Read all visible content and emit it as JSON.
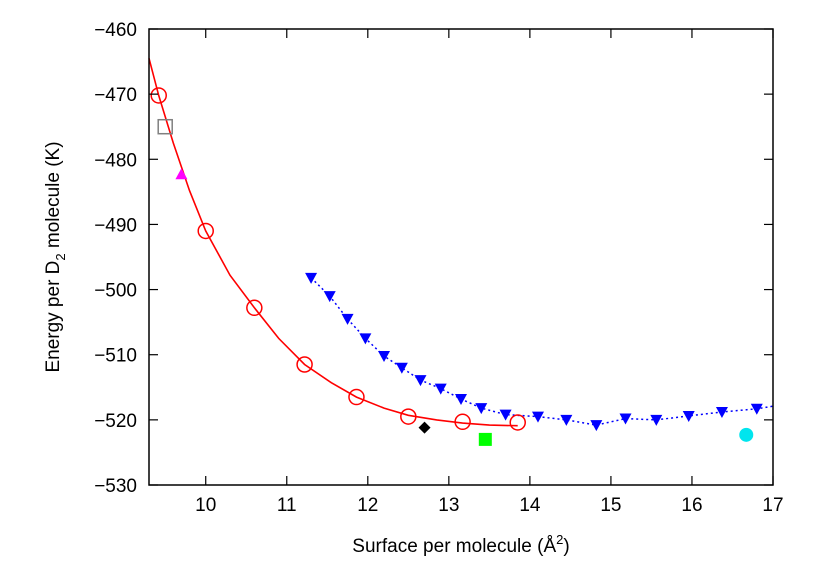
{
  "chart_data": {
    "type": "scatter",
    "title": "",
    "xlabel": {
      "prefix": "Surface per molecule (Å",
      "sup": "2",
      "suffix": ")"
    },
    "ylabel": {
      "prefix": "Energy per D",
      "sub": "2",
      "suffix": " molecule (K)"
    },
    "xlim": [
      9.3,
      17
    ],
    "ylim": [
      -530,
      -460
    ],
    "xticks": [
      10,
      11,
      12,
      13,
      14,
      15,
      16,
      17
    ],
    "yticks": [
      -530,
      -520,
      -510,
      -500,
      -490,
      -480,
      -470,
      -460
    ],
    "xtick_labels": [
      "10",
      "11",
      "12",
      "13",
      "14",
      "15",
      "16",
      "17"
    ],
    "ytick_labels": [
      "−530",
      "−520",
      "−510",
      "−500",
      "−490",
      "−480",
      "−470",
      "−460"
    ],
    "grid": false,
    "legend": "none",
    "series": [
      {
        "marker": "open-circle",
        "color": "#ff0000",
        "points": [
          {
            "x": 9.42,
            "y": -470.2
          },
          {
            "x": 10.0,
            "y": -491.0
          },
          {
            "x": 10.6,
            "y": -502.8
          },
          {
            "x": 11.22,
            "y": -511.5
          },
          {
            "x": 11.86,
            "y": -516.5
          },
          {
            "x": 12.5,
            "y": -519.5
          },
          {
            "x": 13.17,
            "y": -520.3
          },
          {
            "x": 13.85,
            "y": -520.4
          }
        ]
      },
      {
        "marker": "filled-triangle-down",
        "color": "#0000ff",
        "points": [
          {
            "x": 11.3,
            "y": -498.2
          },
          {
            "x": 11.53,
            "y": -501.0
          },
          {
            "x": 11.75,
            "y": -504.5
          },
          {
            "x": 11.97,
            "y": -507.5
          },
          {
            "x": 12.2,
            "y": -510.2
          },
          {
            "x": 12.42,
            "y": -512.0
          },
          {
            "x": 12.65,
            "y": -513.9
          },
          {
            "x": 12.9,
            "y": -515.2
          },
          {
            "x": 13.15,
            "y": -516.8
          },
          {
            "x": 13.4,
            "y": -518.2
          },
          {
            "x": 13.7,
            "y": -519.2
          },
          {
            "x": 14.1,
            "y": -519.5
          },
          {
            "x": 14.45,
            "y": -520.0
          },
          {
            "x": 14.82,
            "y": -520.8
          },
          {
            "x": 15.18,
            "y": -519.8
          },
          {
            "x": 15.56,
            "y": -520.0
          },
          {
            "x": 15.96,
            "y": -519.4
          },
          {
            "x": 16.37,
            "y": -518.8
          },
          {
            "x": 16.8,
            "y": -518.3
          }
        ]
      },
      {
        "marker": "open-square",
        "color": "#808080",
        "points": [
          {
            "x": 9.5,
            "y": -475.0
          }
        ]
      },
      {
        "marker": "filled-triangle-up",
        "color": "#ff00ff",
        "points": [
          {
            "x": 9.7,
            "y": -482.3
          }
        ]
      },
      {
        "marker": "filled-diamond",
        "color": "#000000",
        "points": [
          {
            "x": 12.7,
            "y": -521.2
          }
        ]
      },
      {
        "marker": "filled-square",
        "color": "#00ff00",
        "points": [
          {
            "x": 13.45,
            "y": -523.0
          }
        ]
      },
      {
        "marker": "filled-circle",
        "color": "#00e5ee",
        "points": [
          {
            "x": 16.67,
            "y": -522.3
          }
        ]
      }
    ],
    "lines": [
      {
        "style": "solid",
        "color": "#ff0000",
        "points": [
          {
            "x": 9.3,
            "y": -464.5
          },
          {
            "x": 9.42,
            "y": -470.2
          },
          {
            "x": 9.6,
            "y": -477.5
          },
          {
            "x": 9.8,
            "y": -484.8
          },
          {
            "x": 10.0,
            "y": -491.0
          },
          {
            "x": 10.3,
            "y": -497.8
          },
          {
            "x": 10.6,
            "y": -502.8
          },
          {
            "x": 10.9,
            "y": -507.5
          },
          {
            "x": 11.22,
            "y": -511.5
          },
          {
            "x": 11.55,
            "y": -514.3
          },
          {
            "x": 11.86,
            "y": -516.5
          },
          {
            "x": 12.2,
            "y": -518.2
          },
          {
            "x": 12.5,
            "y": -519.3
          },
          {
            "x": 12.85,
            "y": -520.0
          },
          {
            "x": 13.17,
            "y": -520.5
          },
          {
            "x": 13.5,
            "y": -520.8
          },
          {
            "x": 13.85,
            "y": -520.9
          }
        ]
      },
      {
        "style": "dotted",
        "color": "#0000ff",
        "points": [
          {
            "x": 11.3,
            "y": -498.2
          },
          {
            "x": 11.53,
            "y": -501.0
          },
          {
            "x": 11.75,
            "y": -504.5
          },
          {
            "x": 11.97,
            "y": -507.5
          },
          {
            "x": 12.2,
            "y": -510.2
          },
          {
            "x": 12.42,
            "y": -512.0
          },
          {
            "x": 12.65,
            "y": -513.9
          },
          {
            "x": 12.9,
            "y": -515.2
          },
          {
            "x": 13.15,
            "y": -516.8
          },
          {
            "x": 13.4,
            "y": -518.2
          },
          {
            "x": 13.7,
            "y": -519.2
          },
          {
            "x": 14.1,
            "y": -519.5
          },
          {
            "x": 14.45,
            "y": -520.0
          },
          {
            "x": 14.82,
            "y": -520.8
          },
          {
            "x": 15.18,
            "y": -519.8
          },
          {
            "x": 15.56,
            "y": -520.0
          },
          {
            "x": 15.96,
            "y": -519.4
          },
          {
            "x": 16.37,
            "y": -518.8
          },
          {
            "x": 16.8,
            "y": -518.3
          },
          {
            "x": 17.0,
            "y": -517.9
          }
        ]
      }
    ]
  }
}
